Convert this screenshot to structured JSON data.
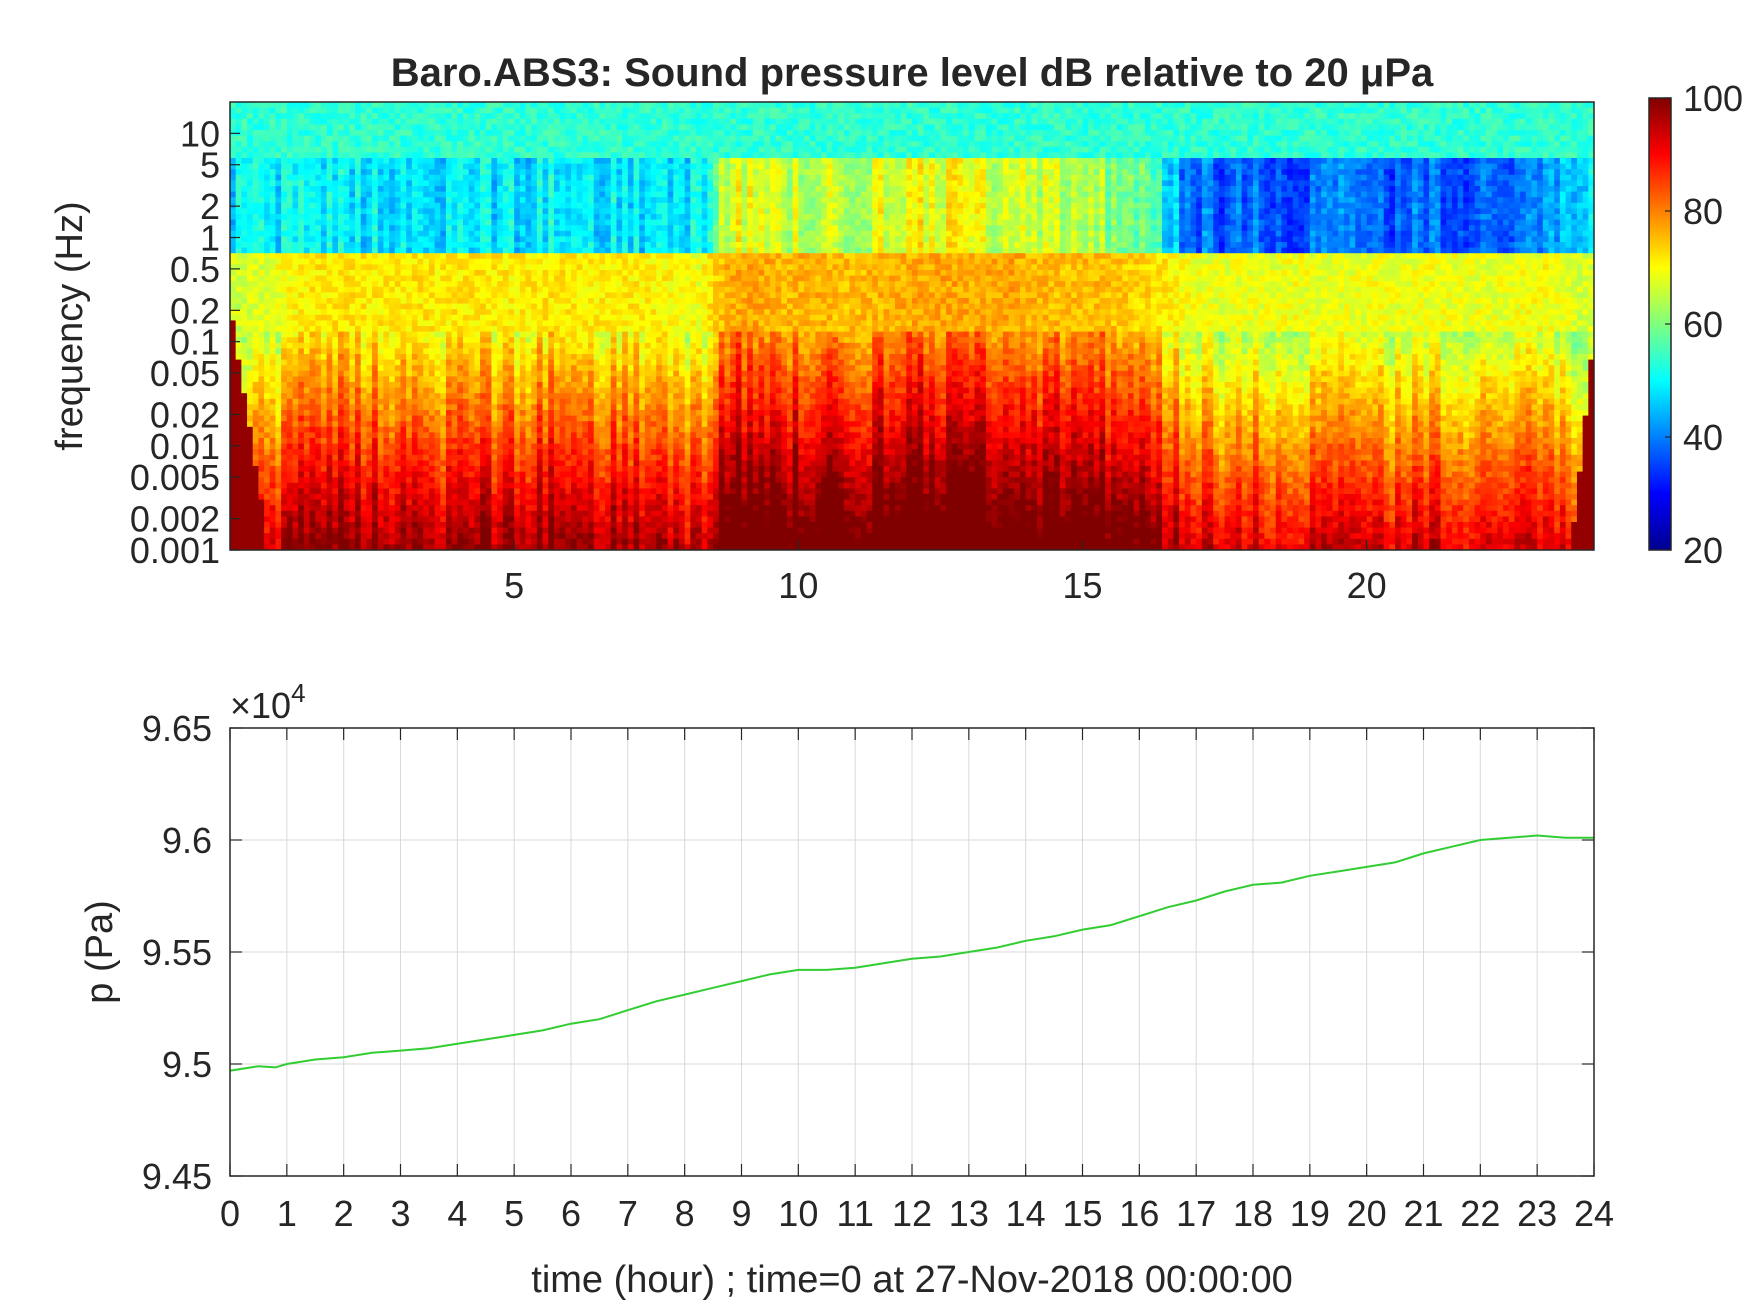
{
  "chart_data": [
    {
      "type": "heatmap",
      "title": "Baro.ABS3: Sound pressure level dB relative to 20 μPa",
      "ylabel": "frequency (Hz)",
      "xlabel": "",
      "y_scale": "log",
      "xlim": [
        0,
        24
      ],
      "ylim": [
        0.001,
        20
      ],
      "x_ticks": [
        5,
        10,
        15,
        20
      ],
      "x_tick_labels": [
        "5",
        "10",
        "15",
        "20"
      ],
      "y_ticks": [
        0.001,
        0.002,
        0.005,
        0.01,
        0.02,
        0.05,
        0.1,
        0.2,
        0.5,
        1,
        2,
        5,
        10
      ],
      "y_tick_labels": [
        "0.001",
        "0.002",
        "0.005",
        "0.01",
        "0.02",
        "0.05",
        "0.1",
        "0.2",
        "0.5",
        "1",
        "2",
        "5",
        "10"
      ],
      "colorbar": {
        "range": [
          20,
          100
        ],
        "ticks": [
          20,
          40,
          60,
          80,
          100
        ],
        "tick_labels": [
          "20",
          "40",
          "60",
          "80",
          "100"
        ],
        "colormap": "jet",
        "stops": [
          "#00008f",
          "#0000ff",
          "#00ffff",
          "#ffff00",
          "#ff0000",
          "#800000"
        ]
      },
      "time_hours": [
        0.25,
        0.75,
        1.25,
        1.75,
        2.25,
        2.75,
        3.25,
        3.75,
        4.25,
        4.75,
        5.25,
        5.75,
        6.25,
        6.75,
        7.25,
        7.75,
        8.25,
        8.75,
        9.25,
        9.75,
        10.25,
        10.75,
        11.25,
        11.75,
        12.25,
        12.75,
        13.25,
        13.75,
        14.25,
        14.75,
        15.25,
        15.75,
        16.25,
        16.75,
        17.25,
        17.75,
        18.25,
        18.75,
        19.25,
        19.75,
        20.25,
        20.75,
        21.25,
        21.75,
        22.25,
        22.75,
        23.25,
        23.75
      ],
      "activity_level": [
        0.15,
        0.3,
        0.5,
        0.55,
        0.55,
        0.5,
        0.55,
        0.5,
        0.55,
        0.5,
        0.5,
        0.55,
        0.5,
        0.5,
        0.5,
        0.45,
        0.35,
        0.85,
        0.9,
        0.8,
        0.85,
        0.75,
        0.8,
        0.85,
        0.9,
        0.9,
        0.85,
        0.9,
        0.8,
        0.75,
        0.8,
        0.7,
        0.6,
        0.4,
        0.3,
        0.3,
        0.3,
        0.35,
        0.3,
        0.3,
        0.35,
        0.3,
        0.35,
        0.3,
        0.3,
        0.35,
        0.4,
        0.2
      ],
      "quiet_band_level": [
        0.55,
        0.55,
        0.55,
        0.55,
        0.55,
        0.55,
        0.55,
        0.55,
        0.55,
        0.55,
        0.55,
        0.55,
        0.55,
        0.55,
        0.55,
        0.55,
        0.55,
        0.8,
        0.85,
        0.8,
        0.8,
        0.75,
        0.8,
        0.8,
        0.85,
        0.85,
        0.8,
        0.85,
        0.8,
        0.75,
        0.75,
        0.7,
        0.65,
        0.45,
        0.4,
        0.4,
        0.4,
        0.4,
        0.4,
        0.4,
        0.4,
        0.4,
        0.4,
        0.4,
        0.4,
        0.4,
        0.5,
        0.55
      ]
    },
    {
      "type": "line",
      "xlabel": "time (hour) ; time=0 at 27-Nov-2018 00:00:00",
      "ylabel": "p (Pa)",
      "xlim": [
        0,
        24
      ],
      "ylim": [
        94500,
        96500
      ],
      "y_multiplier": "×10",
      "y_multiplier_exp": "4",
      "x_ticks": [
        0,
        1,
        2,
        3,
        4,
        5,
        6,
        7,
        8,
        9,
        10,
        11,
        12,
        13,
        14,
        15,
        16,
        17,
        18,
        19,
        20,
        21,
        22,
        23,
        24
      ],
      "x_tick_labels": [
        "0",
        "1",
        "2",
        "3",
        "4",
        "5",
        "6",
        "7",
        "8",
        "9",
        "10",
        "11",
        "12",
        "13",
        "14",
        "15",
        "16",
        "17",
        "18",
        "19",
        "20",
        "21",
        "22",
        "23",
        "24"
      ],
      "y_ticks": [
        94500,
        95000,
        95500,
        96000,
        96500
      ],
      "y_tick_labels": [
        "9.45",
        "9.5",
        "9.55",
        "9.6",
        "9.65"
      ],
      "grid": true,
      "line_color": "#32cd32",
      "x": [
        0,
        0.5,
        0.8,
        1,
        1.5,
        2,
        2.5,
        3,
        3.5,
        4,
        4.5,
        5,
        5.5,
        6,
        6.5,
        7,
        7.5,
        8,
        8.5,
        9,
        9.5,
        10,
        10.5,
        11,
        11.5,
        12,
        12.5,
        13,
        13.5,
        14,
        14.5,
        15,
        15.5,
        16,
        16.5,
        17,
        17.5,
        18,
        18.5,
        19,
        19.5,
        20,
        20.5,
        21,
        21.5,
        22,
        22.5,
        23,
        23.5,
        24
      ],
      "y": [
        94970,
        94990,
        94985,
        95000,
        95020,
        95030,
        95050,
        95060,
        95070,
        95090,
        95110,
        95130,
        95150,
        95180,
        95200,
        95240,
        95280,
        95310,
        95340,
        95370,
        95400,
        95420,
        95420,
        95430,
        95450,
        95470,
        95480,
        95500,
        95520,
        95550,
        95570,
        95600,
        95620,
        95660,
        95700,
        95730,
        95770,
        95800,
        95810,
        95840,
        95860,
        95880,
        95900,
        95940,
        95970,
        96000,
        96010,
        96020,
        96010,
        96010
      ]
    }
  ]
}
